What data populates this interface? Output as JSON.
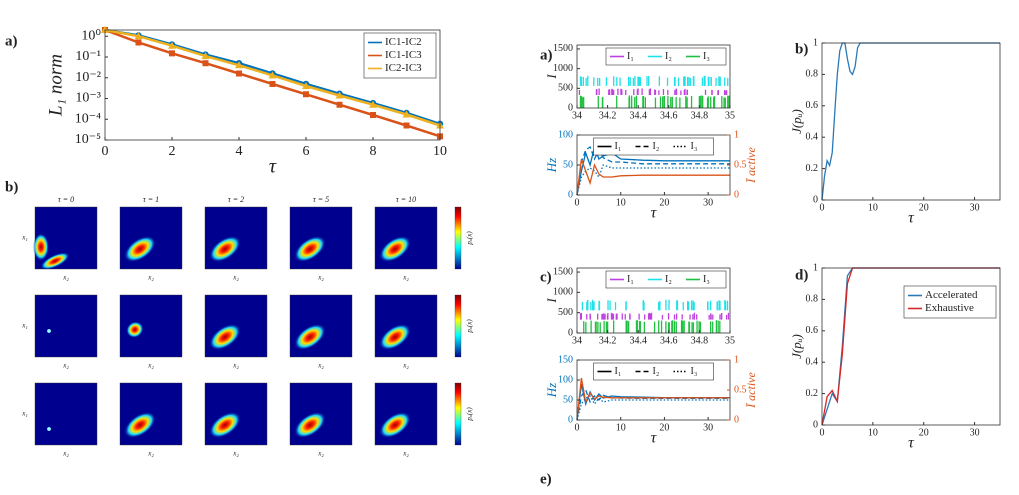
{
  "chart_data": [
    {
      "type": "line",
      "panel": "a)",
      "xlabel": "τ",
      "ylabel": "L₁ norm",
      "log_y": true,
      "markers": true,
      "x": [
        0,
        1,
        2,
        3,
        4,
        5,
        6,
        7,
        8,
        9,
        10
      ],
      "xlim": [
        0,
        10
      ],
      "xticks": [
        0,
        2,
        4,
        6,
        8,
        10
      ],
      "ylim": [
        1e-05,
        2
      ],
      "yticks": [
        {
          "value": 1e-05,
          "label": "10⁻⁵"
        },
        {
          "value": 0.0001,
          "label": "10⁻⁴"
        },
        {
          "value": 0.001,
          "label": "10⁻³"
        },
        {
          "value": 0.01,
          "label": "10⁻²"
        },
        {
          "value": 0.1,
          "label": "10⁻¹"
        },
        {
          "value": 1,
          "label": "10⁰"
        }
      ],
      "legend": "upper right",
      "legend_orientation": "vertical",
      "series": [
        {
          "name": "IC1-IC2",
          "color": "#0072bd",
          "marker": "circle",
          "values": [
            2,
            1.1,
            0.4,
            0.13,
            0.05,
            0.016,
            0.005,
            0.0017,
            0.0006,
            0.0002,
            6e-05
          ]
        },
        {
          "name": "IC1-IC3",
          "color": "#d95319",
          "marker": "square",
          "values": [
            2,
            0.5,
            0.15,
            0.05,
            0.016,
            0.005,
            0.0016,
            0.0005,
            0.00016,
            5e-05,
            1.5e-05
          ]
        },
        {
          "name": "IC2-IC3",
          "color": "#edb120",
          "marker": "triangle",
          "values": [
            2,
            1,
            0.35,
            0.11,
            0.04,
            0.013,
            0.004,
            0.0014,
            0.0005,
            0.00017,
            5e-05
          ]
        }
      ]
    },
    {
      "type": "heatmap",
      "panel": "b)",
      "titles": [
        "τ = 0",
        "τ = 1",
        "τ = 2",
        "τ = 5",
        "τ = 10"
      ],
      "rows": 3,
      "xlabel": "x₂",
      "ylabel": "x₁",
      "colorbar_label": "pᵤ(x)"
    },
    {
      "type": "raster",
      "panel": "a)",
      "ylabel": "I",
      "xlim": [
        34,
        35
      ],
      "xticks": [
        34,
        34.2,
        34.4,
        34.6,
        34.8,
        35
      ],
      "ylim": [
        0,
        1600
      ],
      "yticks": [
        0,
        500,
        1000,
        1500
      ],
      "legend": "upper right",
      "legend_orientation": "horizontal",
      "series": [
        {
          "name": "I₁",
          "color": "#c040e0"
        },
        {
          "name": "I₂",
          "color": "#20e0e8"
        },
        {
          "name": "I₃",
          "color": "#20c040"
        }
      ]
    },
    {
      "type": "line",
      "xlabel": "τ",
      "ylabel": "Hz",
      "ylabel_color": "#0072bd",
      "y2label": "Ī active",
      "y2_color": "#d95319",
      "x": [
        0,
        1,
        2,
        3,
        4,
        5,
        6,
        8,
        10,
        15,
        20,
        25,
        30,
        35
      ],
      "xlim": [
        0,
        35
      ],
      "xticks": [
        0,
        10,
        20,
        30
      ],
      "ylim": [
        0,
        100
      ],
      "yticks": [
        0,
        50,
        100
      ],
      "y2lim": [
        0,
        1
      ],
      "y2ticks": [
        0,
        0.5,
        1
      ],
      "legend": "upper center",
      "legend_orientation": "horizontal",
      "legend_color": "#000",
      "series": [
        {
          "name": "I₁",
          "color": "#0072bd",
          "dash": "none",
          "values": [
            0,
            40,
            70,
            50,
            80,
            60,
            65,
            70,
            60,
            58,
            57,
            57,
            57,
            57
          ]
        },
        {
          "name": "I₂",
          "color": "#0072bd",
          "dash": "5 3",
          "values": [
            0,
            55,
            75,
            80,
            60,
            75,
            62,
            55,
            55,
            52,
            52,
            52,
            52,
            52
          ]
        },
        {
          "name": "I₃",
          "color": "#0072bd",
          "dash": "1.5 2",
          "values": [
            0,
            30,
            40,
            45,
            40,
            30,
            50,
            45,
            45,
            45,
            45,
            45,
            45,
            45
          ]
        },
        {
          "axis": "y2",
          "color": "#d95319",
          "dash": "none",
          "values": [
            0,
            0.6,
            0.4,
            0.2,
            0.5,
            0.35,
            0.3,
            0.3,
            0.32,
            0.33,
            0.33,
            0.33,
            0.33,
            0.33
          ]
        }
      ]
    },
    {
      "type": "line",
      "panel": "b)",
      "xlabel": "τ",
      "ylabel": "J(pᵤ)",
      "x": [
        0,
        0.5,
        1,
        1.5,
        2,
        2.5,
        3,
        3.5,
        4,
        4.5,
        5,
        5.5,
        6,
        6.5,
        7,
        7.5,
        8,
        35
      ],
      "xlim": [
        0,
        35
      ],
      "xticks": [
        0,
        10,
        20,
        30
      ],
      "ylim": [
        0,
        1
      ],
      "yticks": [
        0,
        0.2,
        0.4,
        0.6,
        0.8,
        1
      ],
      "series": [
        {
          "color": "#2a7ab8",
          "values": [
            0,
            0.15,
            0.25,
            0.22,
            0.3,
            0.55,
            0.8,
            0.95,
            1,
            1,
            0.9,
            0.82,
            0.8,
            0.85,
            0.97,
            1,
            1,
            1
          ]
        }
      ]
    },
    {
      "type": "raster",
      "panel": "c)",
      "ylabel": "I",
      "xlim": [
        34,
        35
      ],
      "xticks": [
        34,
        34.2,
        34.4,
        34.6,
        34.8,
        35
      ],
      "ylim": [
        0,
        1600
      ],
      "yticks": [
        0,
        500,
        1000,
        1500
      ],
      "legend": "upper right",
      "legend_orientation": "horizontal",
      "series": [
        {
          "name": "I₁",
          "color": "#c040e0"
        },
        {
          "name": "I₂",
          "color": "#20e0e8"
        },
        {
          "name": "I₃",
          "color": "#20c040"
        }
      ]
    },
    {
      "type": "line",
      "xlabel": "τ",
      "ylabel": "Hz",
      "ylabel_color": "#0072bd",
      "y2label": "Ī active",
      "y2_color": "#d95319",
      "x": [
        0,
        1,
        2,
        3,
        4,
        5,
        6,
        8,
        10,
        15,
        20,
        25,
        30,
        35
      ],
      "xlim": [
        0,
        35
      ],
      "xticks": [
        0,
        10,
        20,
        30
      ],
      "ylim": [
        0,
        150
      ],
      "yticks": [
        0,
        50,
        100,
        150
      ],
      "y2lim": [
        0,
        1
      ],
      "y2ticks": [
        0,
        0.5,
        1
      ],
      "legend": "upper center",
      "legend_orientation": "horizontal",
      "legend_color": "#000",
      "series": [
        {
          "name": "I₁",
          "color": "#0072bd",
          "dash": "none",
          "values": [
            0,
            90,
            40,
            70,
            50,
            65,
            55,
            60,
            58,
            57,
            56,
            56,
            56,
            56
          ]
        },
        {
          "name": "I₂",
          "color": "#0072bd",
          "dash": "5 3",
          "values": [
            0,
            60,
            75,
            45,
            60,
            50,
            62,
            55,
            55,
            54,
            54,
            54,
            54,
            54
          ]
        },
        {
          "name": "I₃",
          "color": "#0072bd",
          "dash": "1.5 2",
          "values": [
            0,
            40,
            55,
            60,
            40,
            55,
            45,
            50,
            50,
            50,
            50,
            50,
            50,
            50
          ]
        },
        {
          "axis": "y2",
          "color": "#d95319",
          "dash": "none",
          "values": [
            0,
            0.7,
            0.3,
            0.45,
            0.35,
            0.4,
            0.38,
            0.37,
            0.37,
            0.37,
            0.37,
            0.37,
            0.37,
            0.37
          ]
        }
      ]
    },
    {
      "type": "line",
      "panel": "d)",
      "xlabel": "τ",
      "ylabel": "J(pᵤ)",
      "x": [
        0,
        1,
        2,
        3,
        4,
        5,
        6,
        10,
        35
      ],
      "xlim": [
        0,
        35
      ],
      "xticks": [
        0,
        10,
        20,
        30
      ],
      "ylim": [
        0,
        1
      ],
      "yticks": [
        0,
        0.2,
        0.4,
        0.6,
        0.8,
        1
      ],
      "legend": "upper right",
      "legend_orientation": "vertical",
      "series": [
        {
          "name": "Accelerated",
          "color": "#2a7ab8",
          "values": [
            0,
            0.1,
            0.2,
            0.15,
            0.5,
            0.95,
            1,
            1,
            1
          ]
        },
        {
          "name": "Exhaustive",
          "color": "#d62728",
          "values": [
            0,
            0.18,
            0.22,
            0.15,
            0.45,
            0.9,
            1,
            1,
            1
          ]
        }
      ]
    }
  ],
  "extra_panel": "e)"
}
